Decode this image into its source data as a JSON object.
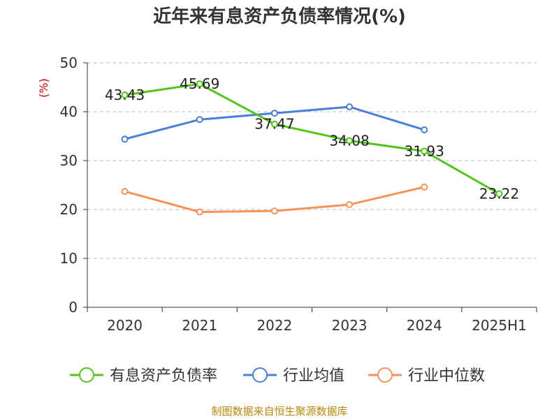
{
  "chart_data": {
    "type": "line",
    "title": "近年来有息资产负债率情况(%)",
    "ylabel": "(%)",
    "xlabel": "",
    "categories": [
      "2020",
      "2021",
      "2022",
      "2023",
      "2024",
      "2025H1"
    ],
    "ylim": [
      0,
      50
    ],
    "yticks": [
      "0",
      "10",
      "20",
      "30",
      "40",
      "50"
    ],
    "grid": "horizontal-dashed",
    "legend_position": "bottom",
    "series": [
      {
        "name": "有息资产负债率",
        "color": "#52c41a",
        "values": [
          43.43,
          45.69,
          37.47,
          34.08,
          31.93,
          23.22
        ],
        "labels": [
          "43.43",
          "45.69",
          "37.47",
          "34.08",
          "31.93",
          "23.22"
        ]
      },
      {
        "name": "行业均值",
        "color": "#4a7fd4",
        "values": [
          34.4,
          38.4,
          39.7,
          41.0,
          36.3,
          null
        ]
      },
      {
        "name": "行业中位数",
        "color": "#f4925a",
        "values": [
          23.7,
          19.5,
          19.7,
          21.0,
          24.6,
          null
        ]
      }
    ]
  },
  "source": "制图数据来自恒生聚源数据库"
}
